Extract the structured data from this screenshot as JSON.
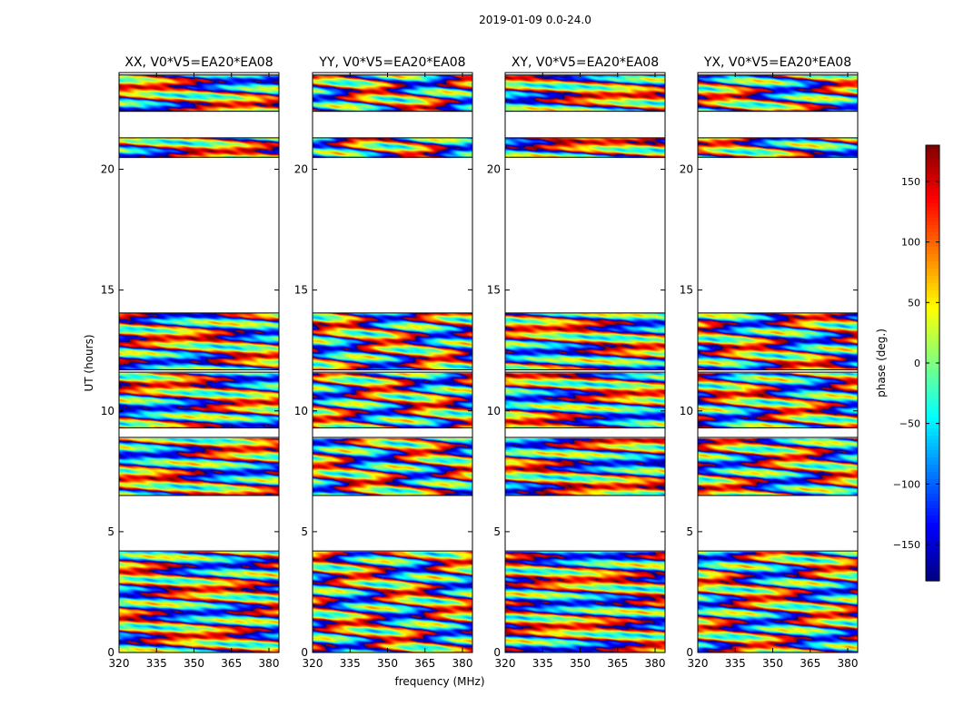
{
  "figure_title": "2019-01-09 0.0-24.0",
  "chart_data": {
    "type": "heatmap",
    "panels": [
      {
        "title": "XX, V0*V5=EA20*EA08",
        "ylabel": "UT (hours)",
        "xlabel": ""
      },
      {
        "title": "YY, V0*V5=EA20*EA08",
        "ylabel": "",
        "xlabel": "frequency (MHz)"
      },
      {
        "title": "XY, V0*V5=EA20*EA08",
        "ylabel": "",
        "xlabel": ""
      },
      {
        "title": "YX, V0*V5=EA20*EA08",
        "ylabel": "",
        "xlabel": ""
      }
    ],
    "xlim": [
      320,
      384
    ],
    "ylim": [
      0,
      24
    ],
    "xticks": [
      320,
      335,
      350,
      365,
      380
    ],
    "xtick_labels": [
      "320",
      "335",
      "350",
      "365",
      "380"
    ],
    "yticks": [
      0,
      5,
      10,
      15,
      20
    ],
    "ytick_labels": [
      "0",
      "5",
      "10",
      "15",
      "20"
    ],
    "z_label": "phase (deg.)",
    "zlim": [
      -180,
      180
    ],
    "colormap": "jet",
    "colorbar_ticks": [
      -150,
      -100,
      -50,
      0,
      50,
      100,
      150
    ],
    "colorbar_tick_labels": [
      "−150",
      "−100",
      "−50",
      "0",
      "50",
      "100",
      "150"
    ],
    "data_time_ranges_hours": [
      [
        0.0,
        4.2
      ],
      [
        6.5,
        8.9
      ],
      [
        9.3,
        11.6
      ],
      [
        11.7,
        14.05
      ],
      [
        20.5,
        21.3
      ],
      [
        22.4,
        23.9
      ]
    ],
    "gap_time_ranges_hours": [
      [
        4.2,
        6.5
      ],
      [
        14.05,
        20.5
      ],
      [
        21.3,
        22.4
      ]
    ],
    "colors": {
      "jet_min": "#00007f",
      "jet_blue": "#0000ff",
      "jet_cyan": "#00ffff",
      "jet_yellow": "#ffff00",
      "jet_red": "#ff0000",
      "jet_max": "#7f0000"
    }
  }
}
